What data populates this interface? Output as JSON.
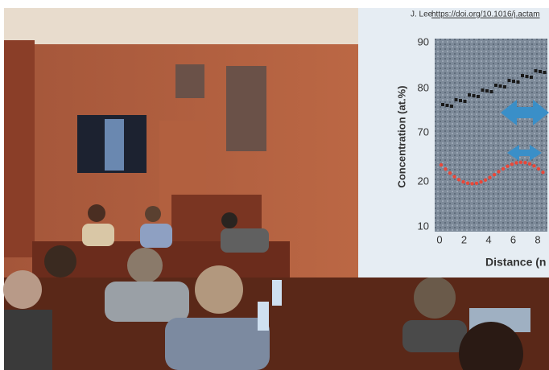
{
  "slide": {
    "credit": "J. Lee",
    "credit_link": "https://doi.org/10.1016/j.actam",
    "y_axis_label": "Concentration (at.%)",
    "x_axis_label": "Distance (n",
    "yticks": [
      "90",
      "80",
      "70",
      "20",
      "10"
    ],
    "xticks": [
      "0",
      "2",
      "4",
      "6",
      "8"
    ]
  }
}
